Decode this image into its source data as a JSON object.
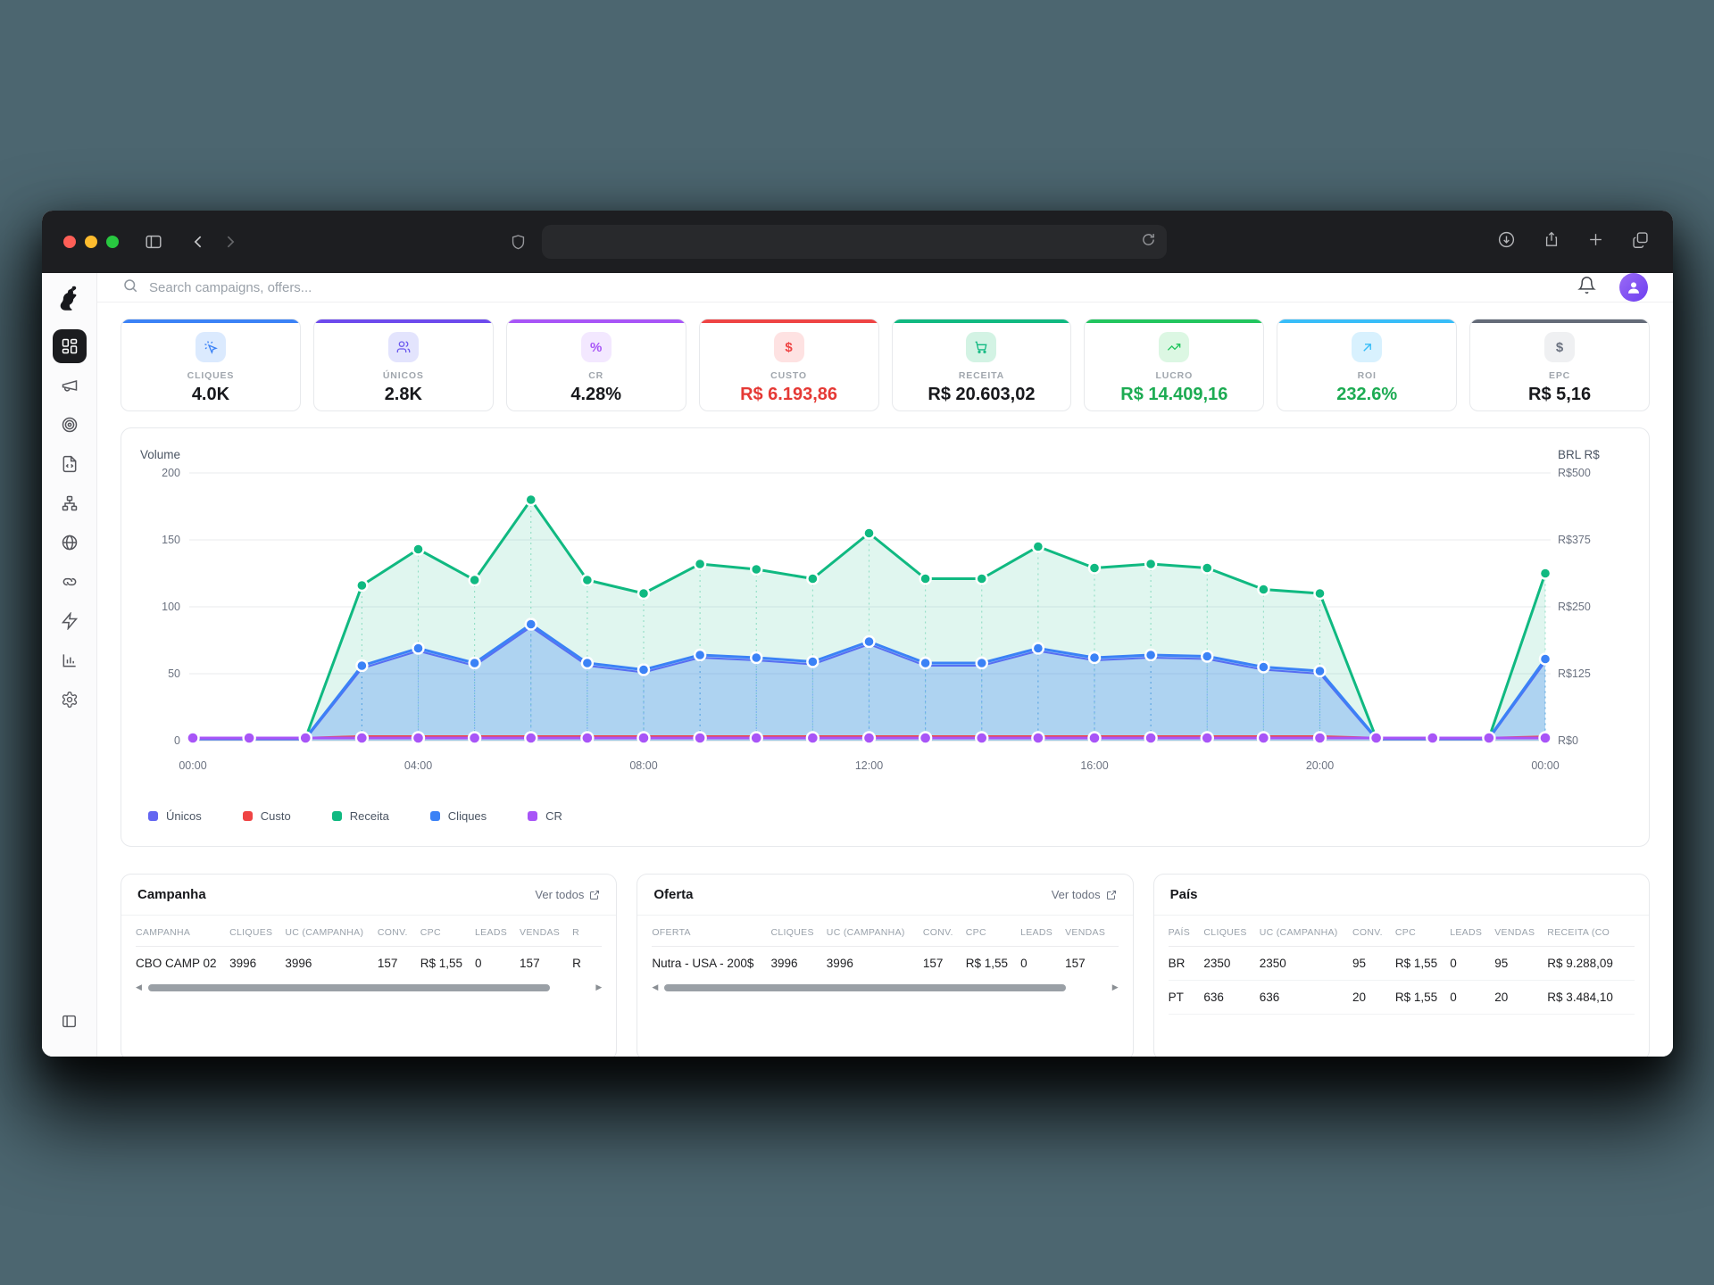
{
  "browser": {
    "traffic_lights": [
      "#ff5f57",
      "#febc2e",
      "#28c840"
    ],
    "toolbar_icons": [
      "sidebar-toggle",
      "back",
      "forward",
      "shield",
      "reload",
      "download",
      "share",
      "new-tab",
      "tab-overview"
    ],
    "url_value": ""
  },
  "sidebar": {
    "logo": "dog-logo",
    "items": [
      {
        "name": "dashboard",
        "active": true
      },
      {
        "name": "campaigns"
      },
      {
        "name": "targets"
      },
      {
        "name": "landing-pages"
      },
      {
        "name": "flows"
      },
      {
        "name": "domains"
      },
      {
        "name": "links"
      },
      {
        "name": "integrations"
      },
      {
        "name": "reports"
      },
      {
        "name": "settings"
      }
    ],
    "bottom_icon": "collapse-panel"
  },
  "header": {
    "search_placeholder": "Search campaigns, offers...",
    "icons": [
      "search",
      "bell",
      "avatar"
    ]
  },
  "kpis": [
    {
      "label": "CLIQUES",
      "value": "4.0K",
      "accent": "#3b82f6",
      "badge_bg": "#dbeafe",
      "badge_fg": "#3b82f6",
      "icon": "cursor-click-icon",
      "value_color": "#17181c"
    },
    {
      "label": "ÚNICOS",
      "value": "2.8K",
      "accent": "#6d4aed",
      "badge_bg": "#e3e4fd",
      "badge_fg": "#6d5bee",
      "icon": "users-icon",
      "value_color": "#17181c"
    },
    {
      "label": "CR",
      "value": "4.28%",
      "accent": "#a855f7",
      "badge_bg": "#f3e8ff",
      "badge_fg": "#a855f7",
      "icon": "percent-icon",
      "value_color": "#17181c"
    },
    {
      "label": "CUSTO",
      "value": "R$ 6.193,86",
      "accent": "#ef4444",
      "badge_bg": "#fee2e2",
      "badge_fg": "#ef4444",
      "icon": "dollar-icon",
      "value_color": "#e53935"
    },
    {
      "label": "RECEITA",
      "value": "R$ 20.603,02",
      "accent": "#10b981",
      "badge_bg": "#d3f3e4",
      "badge_fg": "#10b981",
      "icon": "cart-icon",
      "value_color": "#17181c"
    },
    {
      "label": "LUCRO",
      "value": "R$ 14.409,16",
      "accent": "#22c55e",
      "badge_bg": "#dcf7e3",
      "badge_fg": "#22c55e",
      "icon": "trending-up-icon",
      "value_color": "#1cab52"
    },
    {
      "label": "ROI",
      "value": "232.6%",
      "accent": "#38bdf8",
      "badge_bg": "#d8f1fe",
      "badge_fg": "#38bdf8",
      "icon": "arrow-up-right-icon",
      "value_color": "#1cab52"
    },
    {
      "label": "EPC",
      "value": "R$ 5,16",
      "accent": "#646b78",
      "badge_bg": "#eff0f2",
      "badge_fg": "#6b7280",
      "icon": "dollar-icon",
      "value_color": "#17181c"
    }
  ],
  "chart_data": {
    "type": "line",
    "x": [
      "00:00",
      "01:00",
      "02:00",
      "03:00",
      "04:00",
      "05:00",
      "06:00",
      "07:00",
      "08:00",
      "09:00",
      "10:00",
      "11:00",
      "12:00",
      "13:00",
      "14:00",
      "15:00",
      "16:00",
      "17:00",
      "18:00",
      "19:00",
      "20:00",
      "21:00",
      "22:00",
      "23:00",
      "00:00"
    ],
    "x_tick_labels": [
      "00:00",
      "04:00",
      "08:00",
      "12:00",
      "16:00",
      "20:00",
      "00:00"
    ],
    "x_tick_indices": [
      0,
      4,
      8,
      12,
      16,
      20,
      24
    ],
    "left_axis": {
      "title": "Volume",
      "ticks": [
        0,
        50,
        100,
        150,
        200
      ],
      "range": [
        0,
        200
      ]
    },
    "right_axis": {
      "title": "BRL R$",
      "ticks": [
        "R$0",
        "R$125",
        "R$250",
        "R$375",
        "R$500"
      ]
    },
    "grid": true,
    "legend_position": "bottom-left",
    "series": [
      {
        "name": "Únicos",
        "color": "#6366f1",
        "width": 2,
        "dots": false,
        "area": null,
        "values": [
          1,
          1,
          1,
          54,
          67,
          56,
          85,
          56,
          51,
          62,
          60,
          57,
          72,
          56,
          56,
          67,
          60,
          62,
          61,
          53,
          50,
          1,
          1,
          1,
          59
        ]
      },
      {
        "name": "Receita",
        "color": "#10b981",
        "width": 3,
        "dots": true,
        "area": "rgba(16,185,129,0.13)",
        "droplines": "rgba(16,185,129,0.38)",
        "values": [
          2,
          2,
          2,
          116,
          143,
          120,
          180,
          120,
          110,
          132,
          128,
          121,
          155,
          121,
          121,
          145,
          129,
          132,
          129,
          113,
          110,
          2,
          2,
          2,
          125
        ]
      },
      {
        "name": "Cliques",
        "color": "#3b82f6",
        "width": 3,
        "dots": true,
        "area": "rgba(59,130,246,0.30)",
        "droplines": "rgba(59,130,246,0.45)",
        "values": [
          2,
          2,
          2,
          56,
          69,
          58,
          87,
          58,
          53,
          64,
          62,
          59,
          74,
          58,
          58,
          69,
          62,
          64,
          63,
          55,
          52,
          2,
          2,
          2,
          61
        ]
      },
      {
        "name": "Custo",
        "color": "#ef4444",
        "width": 2.5,
        "dots": false,
        "area": null,
        "values": [
          2,
          2,
          2,
          3.2,
          3.2,
          3.2,
          3.2,
          3.2,
          3.2,
          3.2,
          3.2,
          3.2,
          3.2,
          3.2,
          3.2,
          3.2,
          3.2,
          3.2,
          3.2,
          3.2,
          3.2,
          2,
          2,
          2,
          3
        ]
      },
      {
        "name": "CR",
        "color": "#a855f7",
        "width": 3,
        "dots": true,
        "area": null,
        "values": [
          2,
          2,
          2,
          2,
          2,
          2,
          2,
          2,
          2,
          2,
          2,
          2,
          2,
          2,
          2,
          2,
          2,
          2,
          2,
          2,
          2,
          2,
          2,
          2,
          2
        ]
      }
    ],
    "legend": [
      {
        "label": "Únicos",
        "color": "#6366f1"
      },
      {
        "label": "Custo",
        "color": "#ef4444"
      },
      {
        "label": "Receita",
        "color": "#10b981"
      },
      {
        "label": "Cliques",
        "color": "#3b82f6"
      },
      {
        "label": "CR",
        "color": "#a855f7"
      }
    ]
  },
  "tables": [
    {
      "title": "Campanha",
      "link": "Ver todos",
      "columns": [
        "CAMPANHA",
        "CLIQUES",
        "UC (CAMPANHA)",
        "CONV.",
        "CPC",
        "LEADS",
        "VENDAS",
        "R"
      ],
      "rows": [
        [
          "CBO CAMP 02",
          "3996",
          "3996",
          "157",
          "R$ 1,55",
          "0",
          "157",
          "R"
        ]
      ]
    },
    {
      "title": "Oferta",
      "link": "Ver todos",
      "columns": [
        "OFERTA",
        "CLIQUES",
        "UC (CAMPANHA)",
        "CONV.",
        "CPC",
        "LEADS",
        "VENDAS"
      ],
      "rows": [
        [
          "Nutra - USA - 200$",
          "3996",
          "3996",
          "157",
          "R$ 1,55",
          "0",
          "157"
        ]
      ]
    },
    {
      "title": "País",
      "columns": [
        "PAÍS",
        "CLIQUES",
        "UC (CAMPANHA)",
        "CONV.",
        "CPC",
        "LEADS",
        "VENDAS",
        "RECEITA (CO"
      ],
      "rows": [
        [
          "BR",
          "2350",
          "2350",
          "95",
          "R$ 1,55",
          "0",
          "95",
          "R$ 9.288,09"
        ],
        [
          "PT",
          "636",
          "636",
          "20",
          "R$ 1,55",
          "0",
          "20",
          "R$ 3.484,10"
        ]
      ]
    }
  ]
}
